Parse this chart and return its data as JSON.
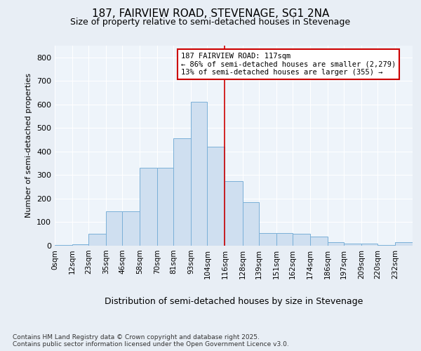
{
  "title1": "187, FAIRVIEW ROAD, STEVENAGE, SG1 2NA",
  "title2": "Size of property relative to semi-detached houses in Stevenage",
  "xlabel": "Distribution of semi-detached houses by size in Stevenage",
  "ylabel": "Number of semi-detached properties",
  "bin_labels": [
    "0sqm",
    "12sqm",
    "23sqm",
    "35sqm",
    "46sqm",
    "58sqm",
    "70sqm",
    "81sqm",
    "93sqm",
    "104sqm",
    "116sqm",
    "128sqm",
    "139sqm",
    "151sqm",
    "162sqm",
    "174sqm",
    "186sqm",
    "197sqm",
    "209sqm",
    "220sqm",
    "232sqm"
  ],
  "bin_edges": [
    0,
    12,
    23,
    35,
    46,
    58,
    70,
    81,
    93,
    104,
    116,
    128,
    139,
    151,
    162,
    174,
    186,
    197,
    209,
    220,
    232
  ],
  "bar_heights": [
    2,
    5,
    50,
    145,
    145,
    330,
    330,
    455,
    610,
    420,
    275,
    185,
    55,
    55,
    50,
    40,
    15,
    8,
    8,
    3,
    15
  ],
  "bar_color": "#cfdff0",
  "bar_edge_color": "#7ab0d8",
  "property_line_x": 116,
  "property_line_color": "#cc0000",
  "annotation_line1": "187 FAIRVIEW ROAD: 117sqm",
  "annotation_line2": "← 86% of semi-detached houses are smaller (2,279)",
  "annotation_line3": "13% of semi-detached houses are larger (355) →",
  "annotation_box_color": "#ffffff",
  "annotation_box_edge": "#cc0000",
  "ylim": [
    0,
    850
  ],
  "yticks": [
    0,
    100,
    200,
    300,
    400,
    500,
    600,
    700,
    800
  ],
  "footer": "Contains HM Land Registry data © Crown copyright and database right 2025.\nContains public sector information licensed under the Open Government Licence v3.0.",
  "bg_color": "#e8eef5",
  "plot_bg_color": "#eef4fa",
  "grid_color": "#ffffff"
}
